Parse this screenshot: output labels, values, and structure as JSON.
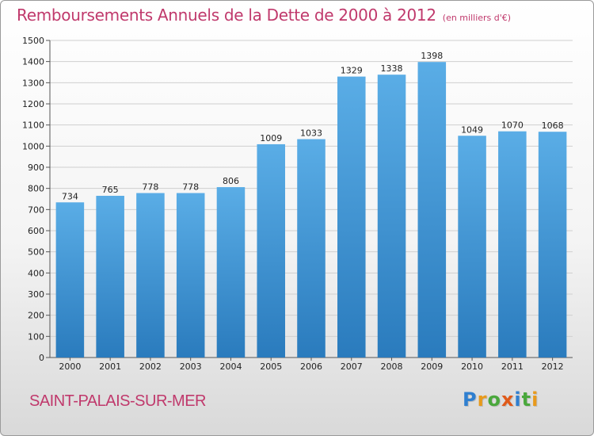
{
  "title": "Remboursements Annuels de la Dette de 2000 à 2012",
  "subtitle": "(en milliers d'€)",
  "commune": "SAINT-PALAIS-SUR-MER",
  "logo": {
    "letters": [
      "P",
      "r",
      "o",
      "x",
      "i",
      "t",
      "i"
    ],
    "colors": [
      "#2f7fd0",
      "#e89a1c",
      "#4aa83c",
      "#e05a1a",
      "#2f7fd0",
      "#4aa83c",
      "#e89a1c"
    ]
  },
  "colors": {
    "bar_top": "#5aade6",
    "bar_bottom": "#2a7bbd",
    "grid": "#cfcfcf",
    "text_accent": "#c0396c"
  },
  "chart_data": {
    "type": "bar",
    "categories": [
      "2000",
      "2001",
      "2002",
      "2003",
      "2004",
      "2005",
      "2006",
      "2007",
      "2008",
      "2009",
      "2010",
      "2011",
      "2012"
    ],
    "values": [
      734,
      765,
      778,
      778,
      806,
      1009,
      1033,
      1329,
      1338,
      1398,
      1049,
      1070,
      1068
    ],
    "data_labels": [
      "734",
      "765",
      "778",
      "778",
      "806",
      "1009",
      "1033",
      "1329",
      "1338",
      "1398",
      "1049",
      "1070",
      "1068"
    ],
    "yticks": [
      "0",
      "100",
      "200",
      "300",
      "400",
      "500",
      "600",
      "700",
      "800",
      "900",
      "1000",
      "1100",
      "1200",
      "1300",
      "1400",
      "1500"
    ],
    "ylim": [
      0,
      1500
    ],
    "grid": true,
    "xlabel": "",
    "ylabel": ""
  }
}
